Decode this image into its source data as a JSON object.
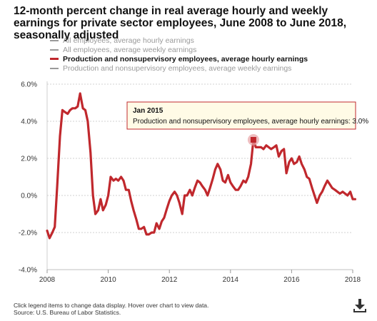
{
  "title": "12-month percent change in real average hourly and weekly earnings for private sector employees, June 2008 to June 2018, seasonally adjusted",
  "legend": [
    {
      "label": "All employees, average hourly earnings",
      "color": "#9a9a9a",
      "style": "solid",
      "active": false
    },
    {
      "label": "All employees, average weekly earnings",
      "color": "#9a9a9a",
      "style": "dashed",
      "active": false
    },
    {
      "label": "Production and nonsupervisory employees, average hourly earnings",
      "color": "#c0282d",
      "style": "solid",
      "active": true
    },
    {
      "label": "Production and nonsupervisory employees, average weekly earnings",
      "color": "#9a9a9a",
      "style": "dashed",
      "active": false
    }
  ],
  "tooltip": {
    "title": "Jan 2015",
    "text": "Production and nonsupervisory employees, average hourly earnings: 3.0%"
  },
  "footer": {
    "line1": "Click legend items to change data display. Hover over chart to view data.",
    "line2": "Source: U.S. Bureau of Labor Statistics."
  },
  "download_icon": "download-icon",
  "chart_data": {
    "type": "line",
    "title": "12-month percent change in real average hourly and weekly earnings for private sector employees, June 2008 to June 2018, seasonally adjusted",
    "xlabel": "",
    "ylabel": "",
    "xlim": [
      2008,
      2018
    ],
    "ylim": [
      -4.0,
      6.0
    ],
    "y_ticks": [
      "-4.0%",
      "-2.0%",
      "0.0%",
      "2.0%",
      "4.0%",
      "6.0%"
    ],
    "x_ticks": [
      "2008",
      "2010",
      "2012",
      "2014",
      "2016",
      "2018"
    ],
    "grid": true,
    "legend_position": "top",
    "highlight": {
      "x": 2014.75,
      "y": 3.0,
      "label": "Jan 2015"
    },
    "series": [
      {
        "name": "Production and nonsupervisory employees, average hourly earnings",
        "color": "#c0282d",
        "points": [
          [
            2008.0,
            -1.9
          ],
          [
            2008.08,
            -2.3
          ],
          [
            2008.17,
            -2.0
          ],
          [
            2008.25,
            -1.7
          ],
          [
            2008.33,
            0.5
          ],
          [
            2008.42,
            3.2
          ],
          [
            2008.5,
            4.6
          ],
          [
            2008.58,
            4.5
          ],
          [
            2008.67,
            4.4
          ],
          [
            2008.75,
            4.6
          ],
          [
            2008.83,
            4.7
          ],
          [
            2008.92,
            4.7
          ],
          [
            2009.0,
            4.8
          ],
          [
            2009.08,
            5.5
          ],
          [
            2009.17,
            4.7
          ],
          [
            2009.25,
            4.6
          ],
          [
            2009.33,
            4.0
          ],
          [
            2009.42,
            2.3
          ],
          [
            2009.5,
            0.0
          ],
          [
            2009.58,
            -1.0
          ],
          [
            2009.67,
            -0.8
          ],
          [
            2009.75,
            -0.2
          ],
          [
            2009.83,
            -0.8
          ],
          [
            2009.92,
            -0.5
          ],
          [
            2010.0,
            0.0
          ],
          [
            2010.08,
            1.0
          ],
          [
            2010.17,
            0.8
          ],
          [
            2010.25,
            0.9
          ],
          [
            2010.33,
            0.8
          ],
          [
            2010.42,
            1.0
          ],
          [
            2010.5,
            0.8
          ],
          [
            2010.58,
            0.3
          ],
          [
            2010.67,
            0.3
          ],
          [
            2010.75,
            -0.3
          ],
          [
            2010.83,
            -0.8
          ],
          [
            2010.92,
            -1.3
          ],
          [
            2011.0,
            -1.8
          ],
          [
            2011.08,
            -1.8
          ],
          [
            2011.17,
            -1.7
          ],
          [
            2011.25,
            -2.1
          ],
          [
            2011.33,
            -2.1
          ],
          [
            2011.42,
            -2.0
          ],
          [
            2011.5,
            -2.0
          ],
          [
            2011.58,
            -1.5
          ],
          [
            2011.67,
            -1.8
          ],
          [
            2011.75,
            -1.4
          ],
          [
            2011.83,
            -1.2
          ],
          [
            2011.92,
            -0.7
          ],
          [
            2012.0,
            -0.3
          ],
          [
            2012.08,
            0.0
          ],
          [
            2012.17,
            0.2
          ],
          [
            2012.25,
            0.0
          ],
          [
            2012.33,
            -0.4
          ],
          [
            2012.42,
            -1.0
          ],
          [
            2012.5,
            0.0
          ],
          [
            2012.58,
            0.0
          ],
          [
            2012.67,
            0.3
          ],
          [
            2012.75,
            0.0
          ],
          [
            2012.83,
            0.4
          ],
          [
            2012.92,
            0.8
          ],
          [
            2013.0,
            0.7
          ],
          [
            2013.08,
            0.5
          ],
          [
            2013.17,
            0.3
          ],
          [
            2013.25,
            0.0
          ],
          [
            2013.33,
            0.4
          ],
          [
            2013.42,
            0.9
          ],
          [
            2013.5,
            1.4
          ],
          [
            2013.58,
            1.7
          ],
          [
            2013.67,
            1.4
          ],
          [
            2013.75,
            0.8
          ],
          [
            2013.83,
            0.7
          ],
          [
            2013.92,
            1.1
          ],
          [
            2014.0,
            0.7
          ],
          [
            2014.08,
            0.5
          ],
          [
            2014.17,
            0.3
          ],
          [
            2014.25,
            0.3
          ],
          [
            2014.33,
            0.5
          ],
          [
            2014.42,
            0.8
          ],
          [
            2014.5,
            0.7
          ],
          [
            2014.58,
            1.0
          ],
          [
            2014.67,
            1.7
          ],
          [
            2014.75,
            3.0
          ],
          [
            2014.83,
            2.6
          ],
          [
            2014.92,
            2.6
          ],
          [
            2015.0,
            2.6
          ],
          [
            2015.08,
            2.5
          ],
          [
            2015.17,
            2.7
          ],
          [
            2015.25,
            2.6
          ],
          [
            2015.33,
            2.5
          ],
          [
            2015.42,
            2.6
          ],
          [
            2015.5,
            2.7
          ],
          [
            2015.58,
            2.1
          ],
          [
            2015.67,
            2.4
          ],
          [
            2015.75,
            2.5
          ],
          [
            2015.83,
            1.2
          ],
          [
            2015.92,
            1.8
          ],
          [
            2016.0,
            2.0
          ],
          [
            2016.08,
            1.7
          ],
          [
            2016.17,
            1.8
          ],
          [
            2016.25,
            2.1
          ],
          [
            2016.33,
            1.7
          ],
          [
            2016.42,
            1.4
          ],
          [
            2016.5,
            1.0
          ],
          [
            2016.58,
            0.9
          ],
          [
            2016.67,
            0.4
          ],
          [
            2016.75,
            0.0
          ],
          [
            2016.83,
            -0.4
          ],
          [
            2016.92,
            0.0
          ],
          [
            2017.0,
            0.2
          ],
          [
            2017.08,
            0.5
          ],
          [
            2017.17,
            0.8
          ],
          [
            2017.25,
            0.6
          ],
          [
            2017.33,
            0.4
          ],
          [
            2017.42,
            0.3
          ],
          [
            2017.5,
            0.2
          ],
          [
            2017.58,
            0.1
          ],
          [
            2017.67,
            0.2
          ],
          [
            2017.75,
            0.1
          ],
          [
            2017.83,
            0.0
          ],
          [
            2017.92,
            0.2
          ],
          [
            2018.0,
            -0.2
          ],
          [
            2018.08,
            -0.2
          ]
        ]
      }
    ]
  }
}
